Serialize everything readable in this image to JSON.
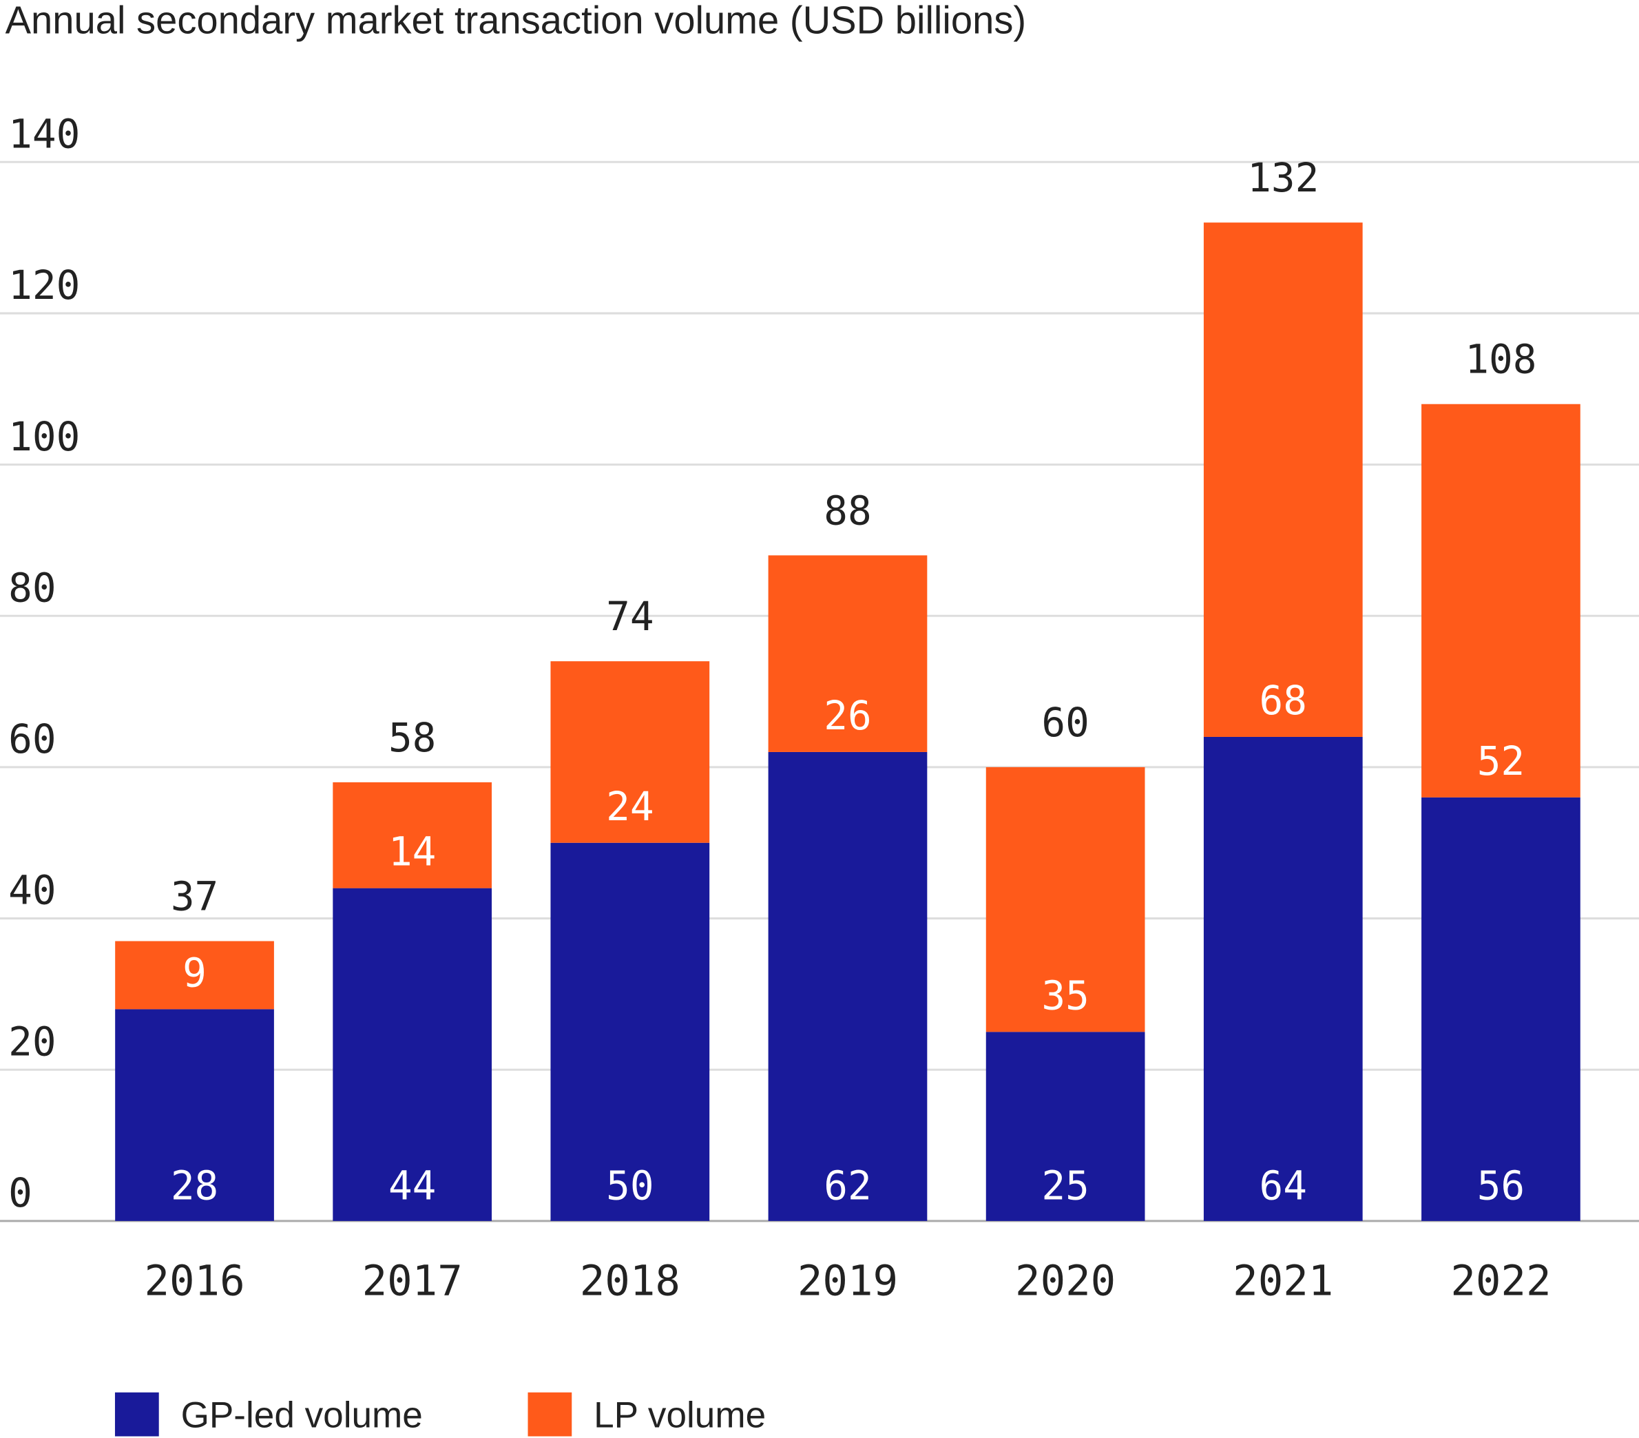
{
  "chart_data": {
    "type": "stacked-bar",
    "title": "Annual secondary market transaction volume (USD billions)",
    "categories": [
      "2016",
      "2017",
      "2018",
      "2019",
      "2020",
      "2021",
      "2022"
    ],
    "series": [
      {
        "name": "GP-led volume",
        "color": "#191a9a",
        "values": [
          28,
          44,
          50,
          62,
          25,
          64,
          56
        ]
      },
      {
        "name": "LP volume",
        "color": "#ff5a1a",
        "values": [
          9,
          14,
          24,
          26,
          35,
          68,
          52
        ]
      }
    ],
    "totals": [
      37,
      58,
      74,
      88,
      60,
      132,
      108
    ],
    "ylim": [
      0,
      140
    ],
    "yticks": [
      0,
      20,
      40,
      60,
      80,
      100,
      120,
      140
    ],
    "grid": true,
    "legend": "bottom-left"
  }
}
